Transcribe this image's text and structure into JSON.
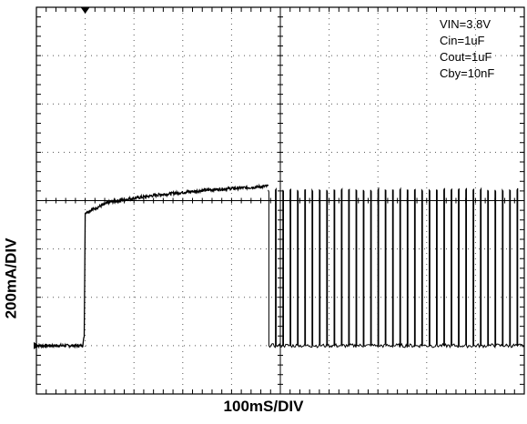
{
  "chart_data": {
    "type": "line",
    "title": "",
    "xlabel": "100mS/DIV",
    "ylabel": "200mA/DIV",
    "grid": true,
    "xlim": [
      0,
      10
    ],
    "ylim": [
      -4,
      4
    ],
    "annotations": [
      "VIN=3.8V",
      "Cin=1uF",
      "Cout=1uF",
      "Cby=10nF"
    ],
    "series": [
      {
        "x": [
          0,
          0.95,
          0.98,
          1.0,
          1.5,
          2.0,
          2.5,
          3.0,
          3.5,
          4.0,
          4.5,
          4.75
        ],
        "values": [
          -3.0,
          -3.0,
          -2.8,
          -0.25,
          -0.03,
          0.05,
          0.12,
          0.17,
          0.22,
          0.25,
          0.28,
          0.3
        ]
      }
    ],
    "pulse_train": {
      "start": 4.75,
      "end": 10,
      "period_div": 0.15,
      "duty": 0.1,
      "high": 0.22,
      "low": -3.0
    }
  }
}
